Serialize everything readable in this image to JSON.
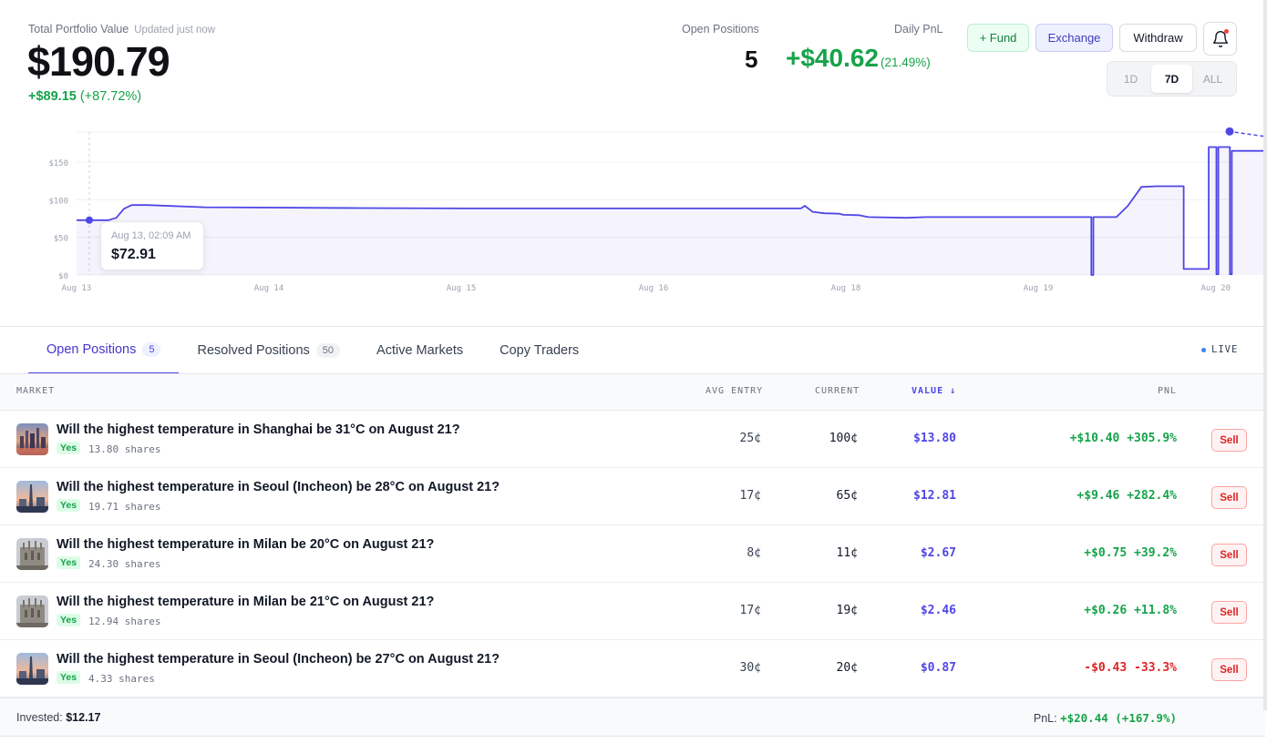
{
  "header": {
    "title": "Total Portfolio Value",
    "updated": "Updated just now",
    "value": "$190.79",
    "change": "+$89.15",
    "change_pct": "(+87.72%)"
  },
  "stats": {
    "open_positions_label": "Open Positions",
    "open_positions_value": "5",
    "daily_pnl_label": "Daily PnL",
    "daily_pnl_value": "+$40.62",
    "daily_pnl_pct": "(21.49%)"
  },
  "actions": {
    "fund": "+ Fund",
    "exchange": "Exchange",
    "withdraw": "Withdraw",
    "notifications_icon": "bell-icon"
  },
  "range": {
    "options": [
      "1D",
      "7D",
      "ALL"
    ],
    "selected": "7D"
  },
  "tooltip": {
    "date": "Aug 13, 02:09 AM",
    "value": "$72.91"
  },
  "chart_data": {
    "type": "line",
    "ylim": [
      0,
      190
    ],
    "y_ticks": [
      "$0",
      "$50",
      "$100",
      "$150"
    ],
    "x_ticks": [
      "Aug 13",
      "Aug 14",
      "Aug 15",
      "Aug 16",
      "Aug 18",
      "Aug 19",
      "Aug 20"
    ],
    "series": [
      {
        "color": "#4f46e5",
        "points": [
          [
            0.0,
            72.9
          ],
          [
            0.1,
            72.9
          ],
          [
            0.14,
            76
          ],
          [
            0.18,
            88
          ],
          [
            0.22,
            93
          ],
          [
            0.3,
            93
          ],
          [
            0.6,
            90
          ],
          [
            1.4,
            89
          ],
          [
            2.0,
            88.5
          ],
          [
            3.0,
            88.5
          ],
          [
            3.6,
            88.5
          ],
          [
            3.7,
            88.5
          ],
          [
            3.72,
            92
          ],
          [
            3.76,
            84
          ],
          [
            3.82,
            82
          ],
          [
            3.9,
            81.5
          ],
          [
            3.92,
            80
          ],
          [
            4.0,
            79.5
          ],
          [
            4.05,
            77
          ],
          [
            4.25,
            76
          ],
          [
            4.35,
            77
          ],
          [
            5.0,
            77
          ],
          [
            5.21,
            77
          ],
          [
            5.21,
            0
          ],
          [
            5.22,
            0
          ],
          [
            5.22,
            77
          ],
          [
            5.34,
            77
          ],
          [
            5.4,
            92
          ],
          [
            5.47,
            117
          ],
          [
            5.55,
            118
          ],
          [
            5.69,
            118
          ],
          [
            5.69,
            8
          ],
          [
            5.82,
            8
          ],
          [
            5.82,
            170
          ],
          [
            5.86,
            170
          ],
          [
            5.86,
            1
          ],
          [
            5.87,
            1
          ],
          [
            5.87,
            170
          ],
          [
            5.93,
            170
          ],
          [
            5.93,
            1
          ],
          [
            5.94,
            1
          ],
          [
            5.94,
            165
          ],
          [
            6.1,
            165
          ],
          [
            6.3,
            168
          ],
          [
            6.45,
            170
          ],
          [
            6.5,
            170
          ]
        ],
        "projection": [
          [
            6.5,
            170
          ],
          [
            6.72,
            190.79
          ]
        ]
      }
    ]
  },
  "tabs": [
    {
      "label": "Open Positions",
      "count": "5",
      "active": true
    },
    {
      "label": "Resolved Positions",
      "count": "50",
      "active": false
    },
    {
      "label": "Active Markets",
      "count": "",
      "active": false
    },
    {
      "label": "Copy Traders",
      "count": "",
      "active": false
    }
  ],
  "live_label": "LIVE",
  "table": {
    "headers": {
      "market": "MARKET",
      "avg_entry": "AVG ENTRY",
      "current": "CURRENT",
      "value": "VALUE ↓",
      "pnl": "PNL"
    },
    "sell_label": "Sell",
    "rows": [
      {
        "title": "Will the highest temperature in Shanghai be 31°C on August 21?",
        "outcome": "Yes",
        "shares": "13.80 shares",
        "avg": "25¢",
        "current": "100¢",
        "value": "$13.80",
        "pnl": "+$10.40 +305.9%",
        "pnl_sign": "pos",
        "thumb": "shanghai"
      },
      {
        "title": "Will the highest temperature in Seoul (Incheon) be 28°C on August 21?",
        "outcome": "Yes",
        "shares": "19.71 shares",
        "avg": "17¢",
        "current": "65¢",
        "value": "$12.81",
        "pnl": "+$9.46 +282.4%",
        "pnl_sign": "pos",
        "thumb": "seoul"
      },
      {
        "title": "Will the highest temperature in Milan be 20°C on August 21?",
        "outcome": "Yes",
        "shares": "24.30 shares",
        "avg": "8¢",
        "current": "11¢",
        "value": "$2.67",
        "pnl": "+$0.75 +39.2%",
        "pnl_sign": "pos",
        "thumb": "milan"
      },
      {
        "title": "Will the highest temperature in Milan be 21°C on August 21?",
        "outcome": "Yes",
        "shares": "12.94 shares",
        "avg": "17¢",
        "current": "19¢",
        "value": "$2.46",
        "pnl": "+$0.26 +11.8%",
        "pnl_sign": "pos",
        "thumb": "milan"
      },
      {
        "title": "Will the highest temperature in Seoul (Incheon) be 27°C on August 21?",
        "outcome": "Yes",
        "shares": "4.33 shares",
        "avg": "30¢",
        "current": "20¢",
        "value": "$0.87",
        "pnl": "-$0.43 -33.3%",
        "pnl_sign": "neg",
        "thumb": "seoul"
      }
    ]
  },
  "footer": {
    "invested_label": "Invested:",
    "invested_value": "$12.17",
    "pnl_label": "PnL:",
    "pnl_value": "+$20.44 (+167.9%)"
  }
}
